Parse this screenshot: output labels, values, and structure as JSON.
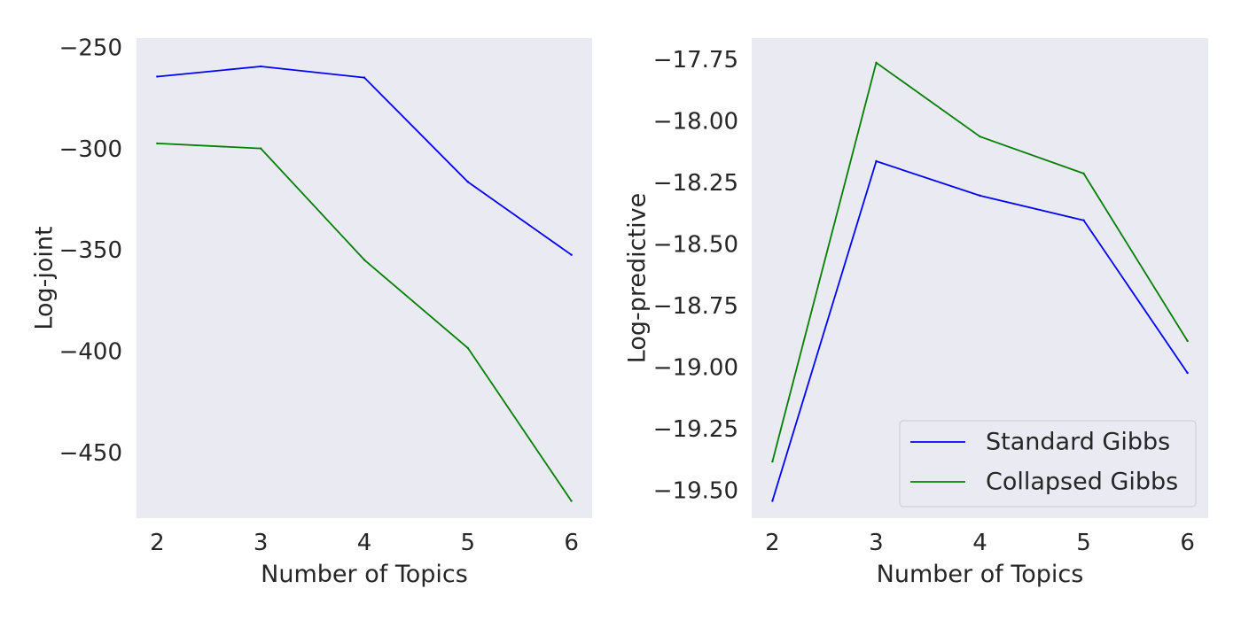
{
  "chart_data": [
    {
      "type": "line",
      "title": "",
      "xlabel": "Number of Topics",
      "ylabel": "Log-joint",
      "x": [
        2,
        3,
        4,
        5,
        6
      ],
      "xticks": [
        "2",
        "3",
        "4",
        "5",
        "6"
      ],
      "yticks": [
        -250,
        -300,
        -350,
        -400,
        -450
      ],
      "ytick_labels": [
        "−250",
        "−300",
        "−350",
        "−400",
        "−450"
      ],
      "xlim": [
        1.8,
        6.2
      ],
      "ylim": [
        -482,
        -245
      ],
      "grid": false,
      "legend": null,
      "series": [
        {
          "color": "#0000ff",
          "values": [
            -264,
            -259,
            -264.5,
            -316,
            -352
          ]
        },
        {
          "color": "#008000",
          "values": [
            -297,
            -299.5,
            -354.5,
            -398,
            -473.5
          ]
        }
      ]
    },
    {
      "type": "line",
      "title": "",
      "xlabel": "Number of Topics",
      "ylabel": "Log-predictive",
      "x": [
        2,
        3,
        4,
        5,
        6
      ],
      "xticks": [
        "2",
        "3",
        "4",
        "5",
        "6"
      ],
      "yticks": [
        -17.75,
        -18.0,
        -18.25,
        -18.5,
        -18.75,
        -19.0,
        -19.25,
        -19.5
      ],
      "ytick_labels": [
        "−17.75",
        "−18.00",
        "−18.25",
        "−18.50",
        "−18.75",
        "−19.00",
        "−19.25",
        "−19.50"
      ],
      "xlim": [
        1.8,
        6.2
      ],
      "ylim": [
        -19.61,
        -17.66
      ],
      "grid": false,
      "legend": "lower-right",
      "series": [
        {
          "name": "Standard Gibbs",
          "color": "#0000ff",
          "values": [
            -19.54,
            -18.16,
            -18.3,
            -18.4,
            -19.02
          ]
        },
        {
          "name": "Collapsed Gibbs",
          "color": "#008000",
          "values": [
            -19.38,
            -17.76,
            -18.06,
            -18.21,
            -18.89
          ]
        }
      ]
    }
  ]
}
